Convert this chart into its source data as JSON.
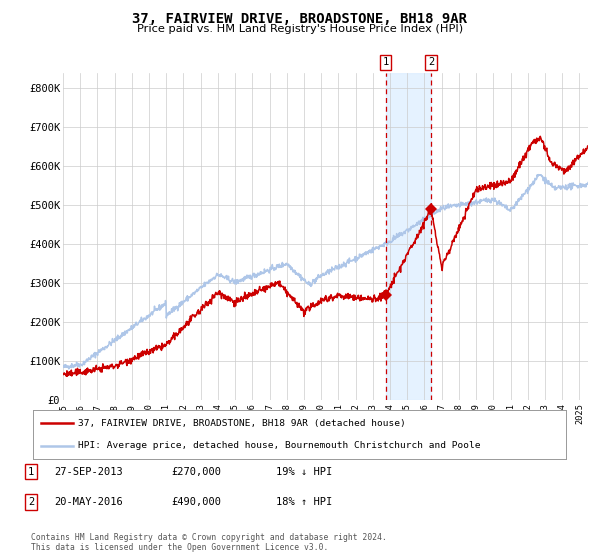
{
  "title": "37, FAIRVIEW DRIVE, BROADSTONE, BH18 9AR",
  "subtitle": "Price paid vs. HM Land Registry's House Price Index (HPI)",
  "legend_line1": "37, FAIRVIEW DRIVE, BROADSTONE, BH18 9AR (detached house)",
  "legend_line2": "HPI: Average price, detached house, Bournemouth Christchurch and Poole",
  "transactions": [
    {
      "label": "1",
      "date": "27-SEP-2013",
      "price": 270000,
      "note": "19% ↓ HPI",
      "x_year": 2013.75
    },
    {
      "label": "2",
      "date": "20-MAY-2016",
      "price": 490000,
      "note": "18% ↑ HPI",
      "x_year": 2016.38
    }
  ],
  "footnote1": "Contains HM Land Registry data © Crown copyright and database right 2024.",
  "footnote2": "This data is licensed under the Open Government Licence v3.0.",
  "hpi_color": "#aec6e8",
  "price_color": "#cc0000",
  "background_color": "#ffffff",
  "grid_color": "#cccccc",
  "xlim": [
    1995.0,
    2025.5
  ],
  "ylim": [
    0,
    840000
  ],
  "yticks": [
    0,
    100000,
    200000,
    300000,
    400000,
    500000,
    600000,
    700000,
    800000
  ],
  "ytick_labels": [
    "£0",
    "£100K",
    "£200K",
    "£300K",
    "£400K",
    "£500K",
    "£600K",
    "£700K",
    "£800K"
  ],
  "xticks": [
    1995,
    1996,
    1997,
    1998,
    1999,
    2000,
    2001,
    2002,
    2003,
    2004,
    2005,
    2006,
    2007,
    2008,
    2009,
    2010,
    2011,
    2012,
    2013,
    2014,
    2015,
    2016,
    2017,
    2018,
    2019,
    2020,
    2021,
    2022,
    2023,
    2024,
    2025
  ],
  "shade_x1": 2013.75,
  "shade_x2": 2016.38
}
